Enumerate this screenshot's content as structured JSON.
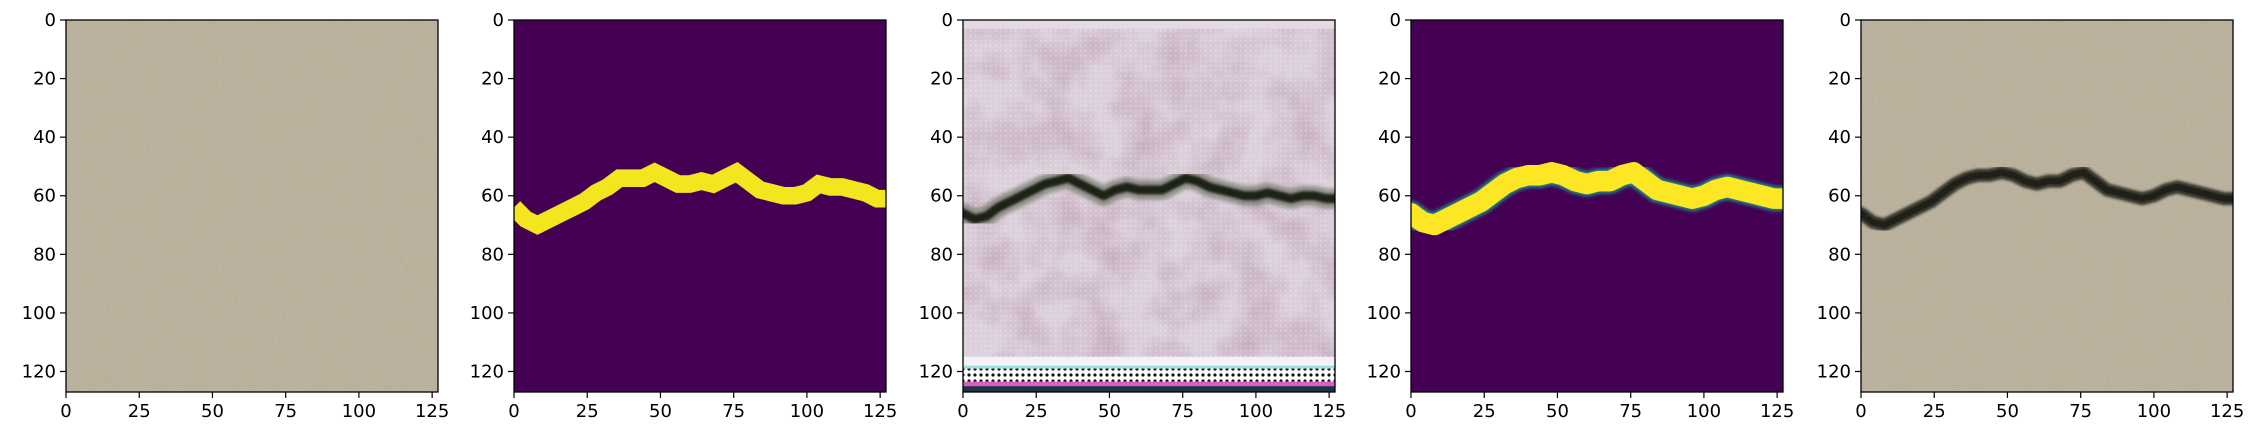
{
  "chart_data": [
    {
      "type": "image",
      "panel": "input-texture",
      "description": "Concrete surface texture without crack",
      "xlim": [
        0,
        127
      ],
      "ylim": [
        127,
        0
      ],
      "xticks": [
        0,
        25,
        50,
        75,
        100,
        125
      ],
      "yticks": [
        0,
        20,
        40,
        60,
        80,
        100,
        120
      ],
      "colors": {
        "base": "#b3a993",
        "grain_dark": "#8f8776",
        "grain_light": "#c8bfaa"
      }
    },
    {
      "type": "image",
      "panel": "binary-crack-mask",
      "description": "Binary crack mask (viridis colormap)",
      "xlim": [
        0,
        127
      ],
      "ylim": [
        127,
        0
      ],
      "xticks": [
        0,
        25,
        50,
        75,
        100,
        125
      ],
      "yticks": [
        0,
        20,
        40,
        60,
        80,
        100,
        120
      ],
      "crack_centerline": {
        "x": [
          0,
          4,
          8,
          12,
          16,
          20,
          24,
          28,
          32,
          36,
          40,
          44,
          48,
          52,
          56,
          60,
          64,
          68,
          72,
          76,
          80,
          84,
          88,
          92,
          96,
          100,
          104,
          108,
          112,
          116,
          120,
          124,
          127
        ],
        "y": [
          64,
          68,
          70,
          68,
          66,
          64,
          62,
          59,
          57,
          54,
          54,
          54,
          52,
          54,
          56,
          56,
          55,
          56,
          54,
          52,
          55,
          58,
          59,
          60,
          60,
          59,
          56,
          57,
          57,
          58,
          59,
          61,
          61
        ]
      },
      "crack_width": 6,
      "colors": {
        "background": "#440154",
        "crack": "#f3e51e"
      }
    },
    {
      "type": "image",
      "panel": "generated-output",
      "description": "Generated image with artifacts and dark crack",
      "xlim": [
        0,
        127
      ],
      "ylim": [
        127,
        0
      ],
      "xticks": [
        0,
        25,
        50,
        75,
        100,
        125
      ],
      "yticks": [
        0,
        20,
        40,
        60,
        80,
        100,
        120
      ],
      "crack_centerline": {
        "x": [
          0,
          4,
          8,
          12,
          16,
          20,
          24,
          28,
          32,
          36,
          40,
          44,
          48,
          52,
          56,
          60,
          64,
          68,
          72,
          76,
          80,
          84,
          88,
          92,
          96,
          100,
          104,
          108,
          112,
          116,
          120,
          124,
          127
        ],
        "y": [
          66,
          68,
          67,
          64,
          62,
          60,
          58,
          56,
          55,
          54,
          56,
          58,
          60,
          58,
          57,
          58,
          58,
          58,
          56,
          54,
          55,
          57,
          58,
          59,
          60,
          60,
          59,
          60,
          61,
          60,
          60,
          61,
          61
        ]
      },
      "colors": {
        "base": "#dcd0dc",
        "blotch": "#a7859a",
        "crack": "#1a2118",
        "noise_a": "#5ad2c8",
        "noise_b": "#e040c0"
      }
    },
    {
      "type": "image",
      "panel": "smoothed-crack-mask",
      "description": "Smoothed crack mask (viridis colormap)",
      "xlim": [
        0,
        127
      ],
      "ylim": [
        127,
        0
      ],
      "xticks": [
        0,
        25,
        50,
        75,
        100,
        125
      ],
      "yticks": [
        0,
        20,
        40,
        60,
        80,
        100,
        120
      ],
      "crack_centerline": {
        "x": [
          0,
          4,
          8,
          12,
          16,
          20,
          24,
          28,
          32,
          36,
          40,
          44,
          48,
          52,
          56,
          60,
          64,
          68,
          72,
          76,
          80,
          84,
          88,
          92,
          96,
          100,
          104,
          108,
          112,
          116,
          120,
          124,
          127
        ],
        "y": [
          66,
          69,
          70,
          68,
          66,
          64,
          62,
          59,
          56,
          54,
          53,
          53,
          52,
          53,
          55,
          56,
          55,
          55,
          53,
          52,
          55,
          58,
          59,
          60,
          61,
          60,
          58,
          57,
          58,
          59,
          60,
          61,
          61
        ]
      },
      "crack_width": 7,
      "colors": {
        "background": "#440154",
        "crack": "#fde725",
        "edge": "#21918c"
      }
    },
    {
      "type": "image",
      "panel": "composited-result",
      "description": "Concrete texture with synthesized dark crack",
      "xlim": [
        0,
        127
      ],
      "ylim": [
        127,
        0
      ],
      "xticks": [
        0,
        25,
        50,
        75,
        100,
        125
      ],
      "yticks": [
        0,
        20,
        40,
        60,
        80,
        100,
        120
      ],
      "crack_centerline": {
        "x": [
          0,
          4,
          8,
          12,
          16,
          20,
          24,
          28,
          32,
          36,
          40,
          44,
          48,
          52,
          56,
          60,
          64,
          68,
          72,
          76,
          80,
          84,
          88,
          92,
          96,
          100,
          104,
          108,
          112,
          116,
          120,
          124,
          127
        ],
        "y": [
          66,
          69,
          70,
          68,
          66,
          64,
          62,
          59,
          56,
          54,
          53,
          53,
          52,
          53,
          55,
          56,
          55,
          55,
          53,
          52,
          55,
          58,
          59,
          60,
          61,
          60,
          58,
          57,
          58,
          59,
          60,
          61,
          61
        ]
      },
      "colors": {
        "base": "#b3a993",
        "grain_dark": "#8f8776",
        "grain_light": "#c8bfaa",
        "crack": "#2a2c24"
      }
    }
  ]
}
